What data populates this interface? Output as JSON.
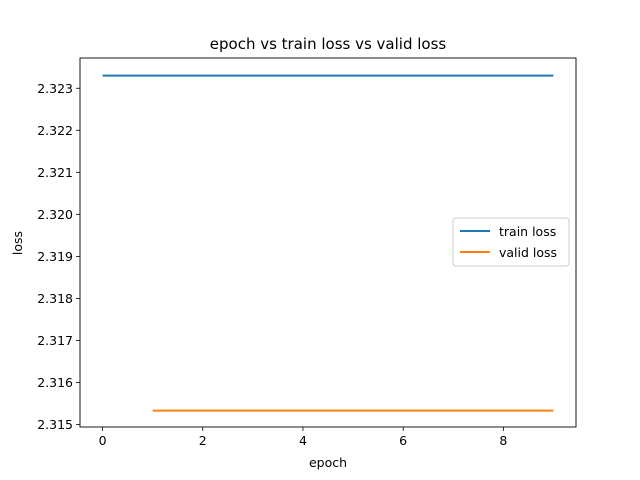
{
  "chart_data": {
    "type": "line",
    "title": "epoch vs train loss vs valid loss",
    "xlabel": "epoch",
    "ylabel": "loss",
    "xlim": [
      -0.45,
      9.45
    ],
    "ylim": [
      2.31494,
      2.32372
    ],
    "xticks": [
      0,
      2,
      4,
      6,
      8
    ],
    "xtick_labels": [
      "0",
      "2",
      "4",
      "6",
      "8"
    ],
    "yticks": [
      2.315,
      2.316,
      2.317,
      2.318,
      2.319,
      2.32,
      2.321,
      2.322,
      2.323
    ],
    "ytick_labels": [
      "2.315",
      "2.316",
      "2.317",
      "2.318",
      "2.319",
      "2.320",
      "2.321",
      "2.322",
      "2.323"
    ],
    "grid": false,
    "legend_position": "center-right",
    "series": [
      {
        "name": "train loss",
        "color": "#1f77b4",
        "x": [
          0,
          1,
          2,
          3,
          4,
          5,
          6,
          7,
          8,
          9
        ],
        "values": [
          2.3233,
          2.3233,
          2.3233,
          2.3233,
          2.3233,
          2.3233,
          2.3233,
          2.3233,
          2.3233,
          2.3233
        ]
      },
      {
        "name": "valid loss",
        "color": "#ff7f0e",
        "x": [
          1,
          2,
          3,
          4,
          5,
          6,
          7,
          8,
          9
        ],
        "values": [
          2.31533,
          2.31533,
          2.31533,
          2.31533,
          2.31533,
          2.31533,
          2.31533,
          2.31533,
          2.31533
        ]
      }
    ]
  }
}
